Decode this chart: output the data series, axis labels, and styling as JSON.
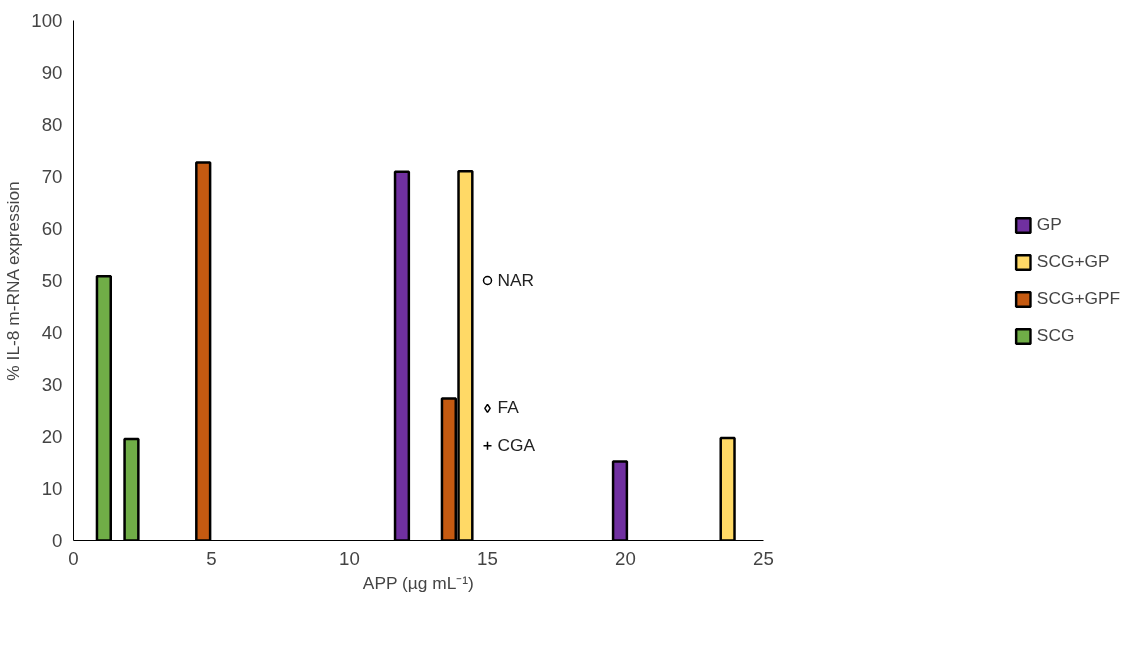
{
  "chart_data": {
    "type": "bar",
    "xlabel": "APP (µg mL⁻¹)",
    "ylabel": "% IL-8 m-RNA expression",
    "xlim": [
      0,
      25
    ],
    "xticks": [
      0,
      5,
      10,
      15,
      20,
      25
    ],
    "ylim": [
      0,
      100
    ],
    "yticks": [
      0,
      10,
      20,
      30,
      40,
      50,
      60,
      70,
      80,
      90,
      100
    ],
    "grid": false,
    "legend": "right",
    "series": [
      {
        "name": "GP",
        "color": "#7030a0",
        "x": [
          11.9,
          19.8
        ],
        "values": [
          70.9,
          15.2
        ]
      },
      {
        "name": "SCG+GP",
        "color": "#ffd966",
        "x": [
          14.2,
          23.7
        ],
        "values": [
          71,
          19.7
        ]
      },
      {
        "name": "SCG+GPF",
        "color": "#c55a11",
        "x": [
          4.7,
          13.6
        ],
        "values": [
          72.7,
          27.3
        ]
      },
      {
        "name": "SCG",
        "color": "#70ad47",
        "x": [
          1.1,
          2.1
        ],
        "values": [
          50.8,
          19.5
        ]
      },
      {
        "name": "NAR",
        "type": "scatter",
        "marker": "circle",
        "color": "#000000",
        "x": [
          15
        ],
        "values": [
          50
        ]
      },
      {
        "name": "FA",
        "type": "scatter",
        "marker": "diamond",
        "color": "#000000",
        "x": [
          15
        ],
        "values": [
          25.4
        ]
      },
      {
        "name": "CGA",
        "type": "scatter",
        "marker": "cross",
        "color": "#000000",
        "x": [
          15
        ],
        "values": [
          18.2
        ]
      }
    ]
  }
}
